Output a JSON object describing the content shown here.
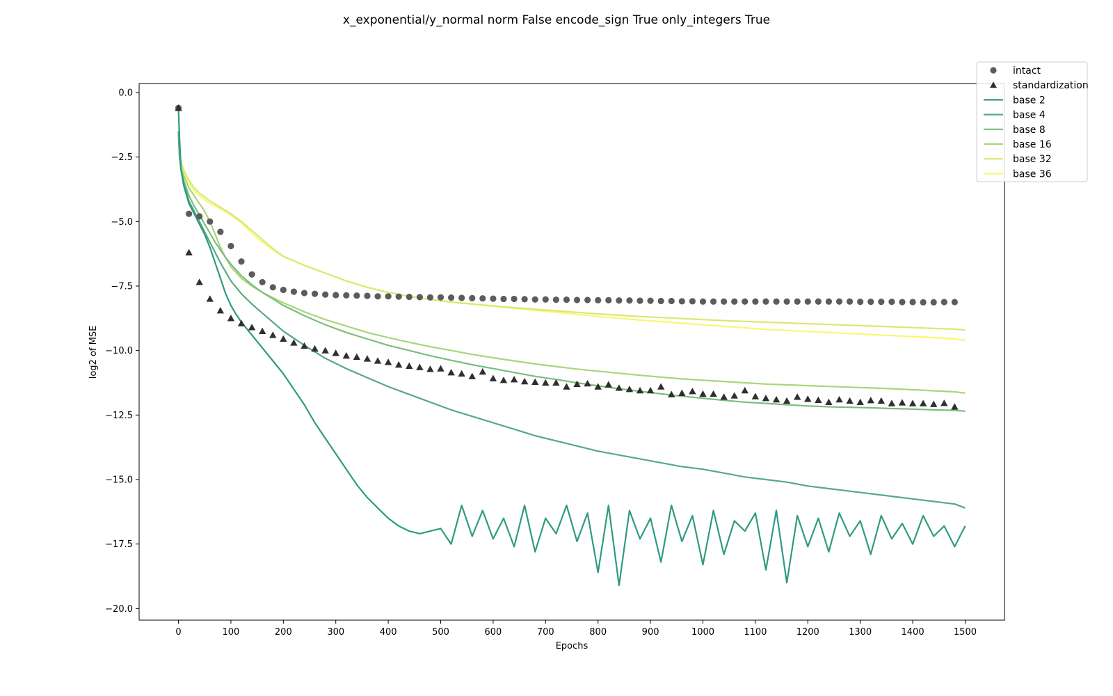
{
  "chart_data": {
    "type": "line",
    "title": "x_exponential/y_normal norm False encode_sign True only_integers True",
    "xlabel": "Epochs",
    "ylabel": "log2 of MSE",
    "xlim": [
      -75,
      1575
    ],
    "ylim": [
      -20.45,
      0.35
    ],
    "x_ticks": [
      0,
      100,
      200,
      300,
      400,
      500,
      600,
      700,
      800,
      900,
      1000,
      1100,
      1200,
      1300,
      1400,
      1500
    ],
    "y_ticks": [
      0.0,
      -2.5,
      -5.0,
      -7.5,
      -10.0,
      -12.5,
      -15.0,
      -17.5,
      -20.0
    ],
    "x_tick_labels": [
      "0",
      "100",
      "200",
      "300",
      "400",
      "500",
      "600",
      "700",
      "800",
      "900",
      "1000",
      "1100",
      "1200",
      "1300",
      "1400",
      "1500"
    ],
    "y_tick_labels": [
      "0.0",
      "−2.5",
      "−5.0",
      "−7.5",
      "−10.0",
      "−12.5",
      "−15.0",
      "−17.5",
      "−20.0"
    ],
    "grid": false,
    "legend_position": "upper-right",
    "series": [
      {
        "name": "intact",
        "kind": "scatter",
        "marker": "circle",
        "color": "#5c5c5c",
        "x": [
          0,
          20,
          40,
          60,
          80,
          100,
          120,
          140,
          160,
          180,
          200,
          220,
          240,
          260,
          280,
          300,
          320,
          340,
          360,
          380,
          400,
          420,
          440,
          460,
          480,
          500,
          520,
          540,
          560,
          580,
          600,
          620,
          640,
          660,
          680,
          700,
          720,
          740,
          760,
          780,
          800,
          820,
          840,
          860,
          880,
          900,
          920,
          940,
          960,
          980,
          1000,
          1020,
          1040,
          1060,
          1080,
          1100,
          1120,
          1140,
          1160,
          1180,
          1200,
          1220,
          1240,
          1260,
          1280,
          1300,
          1320,
          1340,
          1360,
          1380,
          1400,
          1420,
          1440,
          1460,
          1480
        ],
        "y": [
          -0.6,
          -4.7,
          -4.8,
          -5.0,
          -5.4,
          -5.95,
          -6.55,
          -7.05,
          -7.35,
          -7.55,
          -7.65,
          -7.72,
          -7.77,
          -7.8,
          -7.83,
          -7.85,
          -7.86,
          -7.87,
          -7.88,
          -7.9,
          -7.9,
          -7.91,
          -7.92,
          -7.93,
          -7.94,
          -7.94,
          -7.95,
          -7.96,
          -7.97,
          -7.98,
          -7.99,
          -8.0,
          -8.0,
          -8.01,
          -8.02,
          -8.02,
          -8.03,
          -8.03,
          -8.04,
          -8.04,
          -8.05,
          -8.05,
          -8.06,
          -8.06,
          -8.07,
          -8.07,
          -8.08,
          -8.08,
          -8.09,
          -8.09,
          -8.1,
          -8.1,
          -8.1,
          -8.1,
          -8.1,
          -8.1,
          -8.1,
          -8.1,
          -8.1,
          -8.1,
          -8.1,
          -8.1,
          -8.1,
          -8.1,
          -8.1,
          -8.11,
          -8.11,
          -8.11,
          -8.11,
          -8.12,
          -8.12,
          -8.13,
          -8.13,
          -8.12,
          -8.12
        ]
      },
      {
        "name": "standardization",
        "kind": "scatter",
        "marker": "triangle",
        "color": "#2f2f2f",
        "x": [
          0,
          20,
          40,
          60,
          80,
          100,
          120,
          140,
          160,
          180,
          200,
          220,
          240,
          260,
          280,
          300,
          320,
          340,
          360,
          380,
          400,
          420,
          440,
          460,
          480,
          500,
          520,
          540,
          560,
          580,
          600,
          620,
          640,
          660,
          680,
          700,
          720,
          740,
          760,
          780,
          800,
          820,
          840,
          860,
          880,
          900,
          920,
          940,
          960,
          980,
          1000,
          1020,
          1040,
          1060,
          1080,
          1100,
          1120,
          1140,
          1160,
          1180,
          1200,
          1220,
          1240,
          1260,
          1280,
          1300,
          1320,
          1340,
          1360,
          1380,
          1400,
          1420,
          1440,
          1460,
          1480
        ],
        "y": [
          -0.6,
          -6.2,
          -7.35,
          -8.0,
          -8.45,
          -8.75,
          -8.95,
          -9.1,
          -9.25,
          -9.4,
          -9.55,
          -9.7,
          -9.82,
          -9.93,
          -10.0,
          -10.1,
          -10.2,
          -10.25,
          -10.32,
          -10.4,
          -10.45,
          -10.55,
          -10.6,
          -10.65,
          -10.72,
          -10.7,
          -10.85,
          -10.9,
          -11.0,
          -10.82,
          -11.08,
          -11.15,
          -11.12,
          -11.2,
          -11.22,
          -11.25,
          -11.25,
          -11.4,
          -11.3,
          -11.28,
          -11.4,
          -11.32,
          -11.45,
          -11.5,
          -11.55,
          -11.55,
          -11.4,
          -11.7,
          -11.65,
          -11.58,
          -11.68,
          -11.68,
          -11.8,
          -11.75,
          -11.55,
          -11.78,
          -11.85,
          -11.9,
          -11.95,
          -11.8,
          -11.88,
          -11.92,
          -12.0,
          -11.9,
          -11.95,
          -12.0,
          -11.93,
          -11.95,
          -12.05,
          -12.02,
          -12.05,
          -12.05,
          -12.08,
          -12.04,
          -12.18
        ]
      },
      {
        "name": "base 2",
        "kind": "line",
        "color": "#2e9a82",
        "x": [
          0,
          2,
          5,
          10,
          20,
          30,
          40,
          50,
          60,
          70,
          80,
          90,
          100,
          110,
          120,
          140,
          160,
          180,
          200,
          220,
          240,
          260,
          280,
          300,
          320,
          340,
          360,
          380,
          400,
          420,
          440,
          460,
          480,
          500,
          520,
          540,
          560,
          580,
          600,
          620,
          640,
          660,
          680,
          700,
          720,
          740,
          760,
          780,
          800,
          820,
          840,
          860,
          880,
          900,
          920,
          940,
          960,
          980,
          1000,
          1020,
          1040,
          1060,
          1080,
          1100,
          1120,
          1140,
          1160,
          1180,
          1200,
          1220,
          1240,
          1260,
          1280,
          1300,
          1320,
          1340,
          1360,
          1380,
          1400,
          1420,
          1440,
          1460,
          1480,
          1500
        ],
        "y": [
          -0.6,
          -1.8,
          -3.0,
          -3.6,
          -4.3,
          -4.7,
          -5.1,
          -5.5,
          -6.0,
          -6.6,
          -7.2,
          -7.8,
          -8.25,
          -8.6,
          -8.9,
          -9.4,
          -9.9,
          -10.4,
          -10.9,
          -11.5,
          -12.1,
          -12.8,
          -13.4,
          -14.0,
          -14.6,
          -15.2,
          -15.7,
          -16.1,
          -16.5,
          -16.8,
          -17.0,
          -17.1,
          -17.0,
          -16.9,
          -17.5,
          -16.0,
          -17.2,
          -16.2,
          -17.3,
          -16.5,
          -17.6,
          -16.0,
          -17.8,
          -16.5,
          -17.1,
          -16.0,
          -17.4,
          -16.3,
          -18.6,
          -16.0,
          -19.1,
          -16.2,
          -17.3,
          -16.5,
          -18.2,
          -16.0,
          -17.4,
          -16.4,
          -18.3,
          -16.2,
          -17.9,
          -16.6,
          -17.0,
          -16.3,
          -18.5,
          -16.2,
          -19.0,
          -16.4,
          -17.6,
          -16.5,
          -17.8,
          -16.3,
          -17.2,
          -16.6,
          -17.9,
          -16.4,
          -17.3,
          -16.7,
          -17.5,
          -16.4,
          -17.2,
          -16.8,
          -17.6,
          -16.8
        ]
      },
      {
        "name": "base 4",
        "kind": "line",
        "color": "#58aa80",
        "x": [
          0,
          2,
          5,
          10,
          20,
          30,
          40,
          50,
          60,
          70,
          80,
          90,
          100,
          120,
          140,
          160,
          180,
          200,
          240,
          280,
          320,
          360,
          400,
          440,
          480,
          520,
          560,
          600,
          640,
          680,
          720,
          760,
          800,
          840,
          880,
          920,
          960,
          1000,
          1040,
          1080,
          1120,
          1160,
          1200,
          1240,
          1280,
          1320,
          1360,
          1400,
          1440,
          1480,
          1500
        ],
        "y": [
          -1.5,
          -2.5,
          -3.0,
          -3.5,
          -4.2,
          -4.6,
          -5.0,
          -5.4,
          -5.8,
          -6.2,
          -6.6,
          -6.95,
          -7.3,
          -7.8,
          -8.2,
          -8.55,
          -8.9,
          -9.25,
          -9.8,
          -10.3,
          -10.7,
          -11.05,
          -11.4,
          -11.7,
          -12.0,
          -12.3,
          -12.55,
          -12.8,
          -13.05,
          -13.3,
          -13.5,
          -13.7,
          -13.9,
          -14.05,
          -14.2,
          -14.35,
          -14.5,
          -14.6,
          -14.75,
          -14.9,
          -15.0,
          -15.1,
          -15.25,
          -15.35,
          -15.45,
          -15.55,
          -15.65,
          -15.75,
          -15.85,
          -15.95,
          -16.1
        ]
      },
      {
        "name": "base 8",
        "kind": "line",
        "color": "#7cbd7c",
        "x": [
          0,
          2,
          5,
          10,
          20,
          30,
          40,
          50,
          60,
          70,
          80,
          90,
          100,
          120,
          140,
          160,
          180,
          200,
          240,
          280,
          320,
          360,
          400,
          440,
          480,
          520,
          560,
          600,
          640,
          680,
          720,
          760,
          800,
          840,
          880,
          920,
          960,
          1000,
          1040,
          1080,
          1120,
          1160,
          1200,
          1240,
          1280,
          1320,
          1360,
          1400,
          1440,
          1480,
          1500
        ],
        "y": [
          -1.5,
          -2.5,
          -3.0,
          -3.4,
          -4.0,
          -4.4,
          -4.75,
          -5.1,
          -5.45,
          -5.8,
          -6.1,
          -6.4,
          -6.65,
          -7.1,
          -7.45,
          -7.75,
          -8.0,
          -8.25,
          -8.65,
          -9.0,
          -9.3,
          -9.55,
          -9.8,
          -10.0,
          -10.2,
          -10.38,
          -10.55,
          -10.7,
          -10.85,
          -11.0,
          -11.12,
          -11.25,
          -11.37,
          -11.48,
          -11.58,
          -11.68,
          -11.77,
          -11.85,
          -11.93,
          -12.0,
          -12.05,
          -12.1,
          -12.15,
          -12.18,
          -12.2,
          -12.22,
          -12.25,
          -12.27,
          -12.3,
          -12.32,
          -12.35
        ]
      },
      {
        "name": "base 16",
        "kind": "line",
        "color": "#a9d57a",
        "x": [
          0,
          2,
          5,
          10,
          20,
          30,
          40,
          50,
          60,
          70,
          80,
          90,
          100,
          120,
          140,
          160,
          180,
          200,
          240,
          280,
          320,
          360,
          400,
          440,
          480,
          520,
          560,
          600,
          640,
          680,
          720,
          760,
          800,
          840,
          880,
          920,
          960,
          1000,
          1040,
          1080,
          1120,
          1160,
          1200,
          1240,
          1280,
          1320,
          1360,
          1400,
          1440,
          1480,
          1500
        ],
        "y": [
          -1.5,
          -2.4,
          -2.9,
          -3.2,
          -3.7,
          -4.0,
          -4.3,
          -4.6,
          -5.0,
          -5.5,
          -6.0,
          -6.4,
          -6.75,
          -7.2,
          -7.5,
          -7.75,
          -7.95,
          -8.15,
          -8.5,
          -8.8,
          -9.05,
          -9.3,
          -9.5,
          -9.68,
          -9.85,
          -10.0,
          -10.15,
          -10.28,
          -10.4,
          -10.52,
          -10.62,
          -10.72,
          -10.8,
          -10.88,
          -10.96,
          -11.03,
          -11.1,
          -11.15,
          -11.2,
          -11.25,
          -11.3,
          -11.33,
          -11.36,
          -11.39,
          -11.42,
          -11.45,
          -11.48,
          -11.52,
          -11.56,
          -11.6,
          -11.65
        ]
      },
      {
        "name": "base 32",
        "kind": "line",
        "color": "#d8e872",
        "x": [
          0,
          2,
          5,
          10,
          20,
          30,
          40,
          50,
          60,
          80,
          100,
          120,
          140,
          160,
          180,
          200,
          240,
          280,
          320,
          360,
          400,
          440,
          480,
          520,
          560,
          600,
          640,
          680,
          720,
          760,
          800,
          840,
          880,
          920,
          960,
          1000,
          1040,
          1080,
          1120,
          1160,
          1200,
          1240,
          1280,
          1320,
          1360,
          1400,
          1440,
          1480,
          1500
        ],
        "y": [
          -1.5,
          -2.2,
          -2.7,
          -3.0,
          -3.4,
          -3.7,
          -3.9,
          -4.05,
          -4.2,
          -4.45,
          -4.7,
          -5.0,
          -5.35,
          -5.7,
          -6.05,
          -6.35,
          -6.7,
          -7.0,
          -7.3,
          -7.55,
          -7.75,
          -7.9,
          -8.02,
          -8.12,
          -8.2,
          -8.27,
          -8.34,
          -8.4,
          -8.46,
          -8.52,
          -8.58,
          -8.63,
          -8.68,
          -8.72,
          -8.76,
          -8.8,
          -8.84,
          -8.87,
          -8.9,
          -8.93,
          -8.96,
          -8.99,
          -9.02,
          -9.05,
          -9.08,
          -9.11,
          -9.14,
          -9.17,
          -9.2
        ]
      },
      {
        "name": "base 36",
        "kind": "line",
        "color": "#f8f870",
        "x": [
          0,
          2,
          5,
          10,
          20,
          30,
          40,
          50,
          60,
          80,
          100,
          120,
          140,
          160,
          180,
          200,
          240,
          280,
          320,
          360,
          400,
          440,
          480,
          520,
          560,
          600,
          640,
          680,
          720,
          760,
          800,
          840,
          880,
          920,
          960,
          1000,
          1040,
          1080,
          1120,
          1160,
          1200,
          1240,
          1280,
          1320,
          1360,
          1400,
          1440,
          1480,
          1500
        ],
        "y": [
          -1.5,
          -2.3,
          -2.75,
          -3.1,
          -3.5,
          -3.8,
          -4.0,
          -4.15,
          -4.3,
          -4.5,
          -4.75,
          -5.05,
          -5.45,
          -5.8,
          -6.1,
          -6.35,
          -6.7,
          -7.0,
          -7.3,
          -7.55,
          -7.75,
          -7.9,
          -8.02,
          -8.12,
          -8.2,
          -8.28,
          -8.36,
          -8.44,
          -8.52,
          -8.6,
          -8.68,
          -8.75,
          -8.82,
          -8.88,
          -8.94,
          -9.0,
          -9.06,
          -9.12,
          -9.18,
          -9.22,
          -9.26,
          -9.3,
          -9.34,
          -9.38,
          -9.42,
          -9.46,
          -9.5,
          -9.55,
          -9.6
        ]
      }
    ]
  }
}
